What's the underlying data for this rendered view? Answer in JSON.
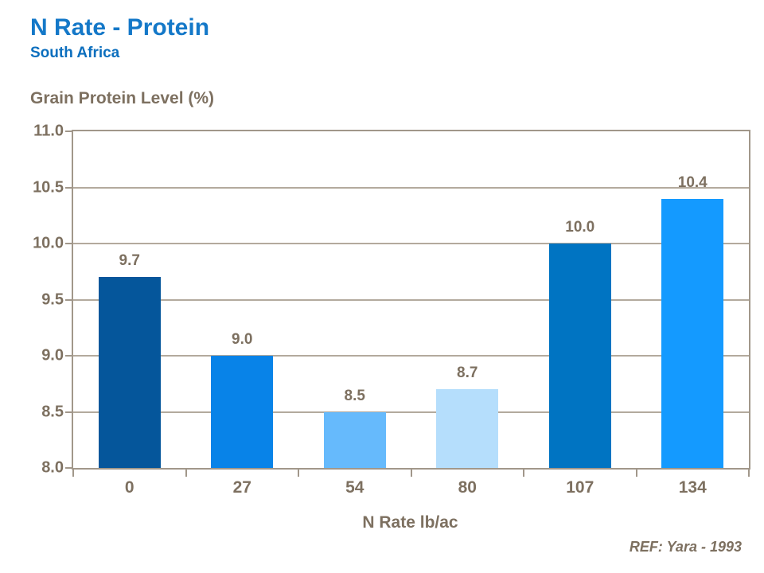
{
  "header": {
    "title": "N Rate - Protein",
    "subtitle": "South Africa"
  },
  "footer": {
    "reference": "REF: Yara - 1993"
  },
  "colors": {
    "title_blue": "#1478C8",
    "subtitle_blue": "#0C6FBE",
    "text_brown": "#7D7060",
    "gridline": "#B3AA9D",
    "axis_border": "#A1978A"
  },
  "chart_data": {
    "type": "bar",
    "title": "N Rate - Protein",
    "subtitle": "South Africa",
    "categories": [
      "0",
      "27",
      "54",
      "80",
      "107",
      "134"
    ],
    "values": [
      9.7,
      9.0,
      8.5,
      8.7,
      10.0,
      10.4
    ],
    "value_labels": [
      "9.7",
      "9.0",
      "8.5",
      "8.7",
      "10.0",
      "10.4"
    ],
    "bar_colors": [
      "#05569B",
      "#0883E8",
      "#66BAFC",
      "#B5DEFC",
      "#0074C2",
      "#149AFF"
    ],
    "xlabel": "N Rate lb/ac",
    "ylabel": "Grain Protein Level (%)",
    "ylim": [
      8.0,
      11.0
    ],
    "ytick_step": 0.5,
    "ytick_labels": [
      "8.0",
      "8.5",
      "9.0",
      "9.5",
      "10.0",
      "10.5",
      "11.0"
    ],
    "grid": true,
    "legend": false,
    "annotations": []
  }
}
